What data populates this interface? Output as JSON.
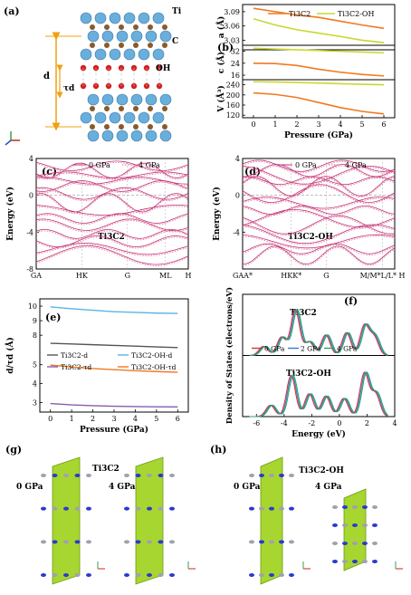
{
  "panels": {
    "a": {
      "label": "(a)",
      "atoms": {
        "ti": "Ti",
        "c": "C",
        "oh": "OH"
      },
      "dims": {
        "d": "d",
        "tau": "τd"
      },
      "colors": {
        "ti": "#6aaedc",
        "c": "#8a5a2b",
        "o": "#d42020"
      }
    },
    "b": {
      "label": "(b)"
    },
    "c": {
      "label": "(c)",
      "compound": "Ti3C2"
    },
    "d": {
      "label": "(d)",
      "compound": "Ti3C2-OH"
    },
    "e": {
      "label": "(e)"
    },
    "f": {
      "label": "(f)",
      "top_compound": "Ti3C2",
      "bottom_compound": "Ti3C2-OH"
    },
    "g": {
      "label": "(g)",
      "compound": "Ti3C2",
      "left_p": "0 GPa",
      "right_p": "4 GPa"
    },
    "h": {
      "label": "(h)",
      "compound": "Ti3C2-OH",
      "left_p": "0 GPa",
      "right_p": "4 GPa"
    }
  },
  "chart_data": [
    {
      "id": "b",
      "type": "line",
      "xlabel": "Pressure (GPa)",
      "xlim": [
        -0.5,
        6.5
      ],
      "xticks": [
        "0",
        "1",
        "2",
        "3",
        "4",
        "5",
        "6"
      ],
      "legend": [
        "Ti3C2",
        "Ti3C2-OH"
      ],
      "legend_placement": "top",
      "subplots": [
        {
          "ylabel": "a (Å)",
          "ylim": [
            3.01,
            3.105
          ],
          "yticks": [
            "3.03",
            "3.06",
            "3.09"
          ],
          "series": [
            {
              "name": "Ti3C2",
              "color": "#f07a20",
              "x": [
                0,
                1,
                2,
                3,
                4,
                5,
                6
              ],
              "y": [
                3.097,
                3.09,
                3.083,
                3.078,
                3.07,
                3.062,
                3.055
              ]
            },
            {
              "name": "Ti3C2-OH",
              "color": "#c8d830",
              "x": [
                0,
                1,
                2,
                3,
                4,
                5,
                6
              ],
              "y": [
                3.075,
                3.062,
                3.052,
                3.045,
                3.038,
                3.03,
                3.025
              ]
            }
          ]
        },
        {
          "ylabel": "c (Å)",
          "ylim": [
            13,
            36
          ],
          "yticks": [
            "16",
            "24",
            "32"
          ],
          "series": [
            {
              "name": "Ti3C2",
              "color": "#f07a20",
              "x": [
                0,
                1,
                2,
                3,
                4,
                5,
                6
              ],
              "y": [
                24,
                23.8,
                22.5,
                20,
                18,
                16.5,
                15.5
              ]
            },
            {
              "name": "Ti3C2-OH",
              "color": "#c8d830",
              "x": [
                0,
                1,
                2,
                3,
                4,
                5,
                6
              ],
              "y": [
                34,
                33.5,
                33,
                32.5,
                32,
                31.5,
                31
              ]
            }
          ]
        },
        {
          "ylabel": "V (Å³)",
          "ylim": [
            110,
            260
          ],
          "yticks": [
            "120",
            "160",
            "200",
            "240"
          ],
          "series": [
            {
              "name": "Ti3C2",
              "color": "#f07a20",
              "x": [
                0,
                1,
                2,
                3,
                4,
                5,
                6
              ],
              "y": [
                208,
                202,
                190,
                170,
                150,
                135,
                125
              ]
            },
            {
              "name": "Ti3C2-OH",
              "color": "#c8d830",
              "x": [
                0,
                1,
                2,
                3,
                4,
                5,
                6
              ],
              "y": [
                252,
                251,
                249,
                247,
                244,
                242,
                240
              ]
            }
          ]
        }
      ]
    },
    {
      "id": "c",
      "type": "line",
      "ylabel": "Energy (eV)",
      "ylim": [
        -8,
        4
      ],
      "yticks": [
        "-8",
        "-4",
        "0",
        "4"
      ],
      "kpoints": [
        "GA",
        "HK",
        "G",
        "ML",
        "H"
      ],
      "legend": [
        "0 GPa",
        "4 GPa"
      ]
    },
    {
      "id": "d",
      "type": "line",
      "ylabel": "Energy (eV)",
      "ylim": [
        -8,
        4
      ],
      "yticks": [
        "-4",
        "0",
        "4"
      ],
      "kpoints": [
        "GAA*",
        "HKK*",
        "G",
        "M/M*L/L* H"
      ],
      "legend": [
        "0 GPa",
        "4 GPa"
      ]
    },
    {
      "id": "e",
      "type": "line",
      "ylabel": "d/τd (Å)",
      "xlabel": "Pressure (GPa)",
      "xlim": [
        -0.5,
        6.5
      ],
      "ylim": [
        2.5,
        10.5
      ],
      "yticks": [
        "3",
        "4",
        "5",
        "8",
        "9",
        "10"
      ],
      "xticks": [
        "0",
        "1",
        "2",
        "3",
        "4",
        "5",
        "6"
      ],
      "legend": [
        "Ti3C2-d",
        "Ti3C2-OH-d",
        "Ti3C2-τd",
        "Ti3C2-OH-τd"
      ],
      "series": [
        {
          "name": "Ti3C2-OH-d",
          "color": "#5ab4e6",
          "x": [
            0,
            1,
            2,
            3,
            4,
            5,
            6
          ],
          "y": [
            9.95,
            9.82,
            9.72,
            9.62,
            9.57,
            9.52,
            9.5
          ]
        },
        {
          "name": "Ti3C2-d",
          "color": "#555555",
          "x": [
            0,
            1,
            2,
            3,
            4,
            5,
            6
          ],
          "y": [
            7.45,
            7.4,
            7.35,
            7.3,
            7.25,
            7.2,
            7.15
          ]
        },
        {
          "name": "Ti3C2-OH-τd",
          "color": "#f07a20",
          "x": [
            0,
            1,
            2,
            3,
            4,
            5,
            6
          ],
          "y": [
            4.98,
            4.88,
            4.8,
            4.74,
            4.68,
            4.64,
            4.6
          ]
        },
        {
          "name": "Ti3C2-τd",
          "color": "#8a5ab0",
          "x": [
            0,
            1,
            2,
            3,
            4,
            5,
            6
          ],
          "y": [
            2.95,
            2.88,
            2.84,
            2.81,
            2.79,
            2.78,
            2.77
          ]
        }
      ]
    },
    {
      "id": "f",
      "type": "line",
      "ylabel": "Density of States (electrons/eV)",
      "xlabel": "Energy (eV)",
      "xlim": [
        -7,
        4
      ],
      "xticks": [
        "-6",
        "-4",
        "-2",
        "0",
        "2",
        "4"
      ],
      "legend": [
        "0 GPa",
        "2 GPa",
        "4 GPa"
      ],
      "legend_colors": [
        "#e03030",
        "#3a7ad8",
        "#2aa860"
      ]
    }
  ]
}
